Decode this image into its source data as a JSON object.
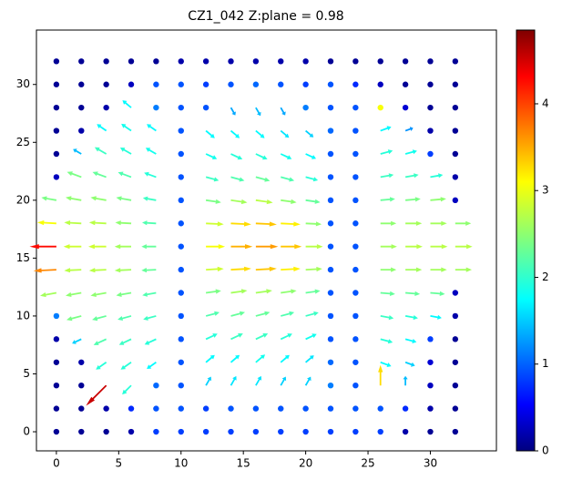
{
  "chart_data": {
    "type": "quiver",
    "title": "CZ1_042   Z:plane = 0.98",
    "colormap": "jet",
    "clim": [
      0,
      4.85
    ],
    "cticks": [
      0,
      1,
      2,
      3,
      4
    ],
    "xlim": [
      -1.6,
      35.3
    ],
    "ylim": [
      -1.65,
      34.7
    ],
    "xticks": [
      0,
      5,
      10,
      15,
      20,
      25,
      30
    ],
    "yticks": [
      0,
      5,
      10,
      15,
      20,
      25,
      30
    ],
    "x": [
      0,
      2,
      4,
      6,
      8,
      10,
      12,
      14,
      16,
      18,
      20,
      22,
      24,
      26,
      28,
      30,
      32
    ],
    "y": [
      0,
      2,
      4,
      6,
      8,
      10,
      12,
      14,
      16,
      18,
      20,
      22,
      24,
      26,
      28,
      30,
      32
    ],
    "magnitude": [
      [
        0.1,
        0.1,
        0.1,
        0.2,
        0.9,
        0.9,
        0.9,
        0.9,
        0.9,
        0.9,
        0.9,
        0.9,
        0.9,
        0.9,
        0.2,
        0.1,
        0.1
      ],
      [
        0.1,
        0.1,
        0.2,
        0.8,
        1.0,
        1.0,
        0.9,
        1.0,
        1.0,
        1.0,
        1.0,
        1.0,
        1.0,
        1.0,
        0.8,
        0.2,
        0.1
      ],
      [
        0.1,
        0.1,
        4.5,
        2.0,
        1.1,
        1.0,
        1.6,
        1.7,
        1.7,
        1.6,
        1.6,
        1.2,
        1.0,
        3.2,
        1.5,
        0.3,
        0.1
      ],
      [
        0.1,
        0.2,
        2.0,
        2.0,
        1.8,
        1.0,
        1.8,
        1.8,
        1.9,
        1.8,
        1.7,
        1.1,
        1.0,
        1.8,
        1.6,
        0.4,
        0.1
      ],
      [
        0.2,
        1.6,
        2.2,
        2.1,
        2.0,
        1.0,
        2.0,
        2.1,
        2.1,
        2.0,
        1.9,
        1.0,
        1.0,
        2.0,
        1.8,
        0.9,
        0.1
      ],
      [
        1.2,
        2.4,
        2.3,
        2.2,
        2.1,
        1.0,
        2.2,
        2.3,
        2.3,
        2.2,
        2.1,
        1.0,
        1.0,
        2.1,
        2.0,
        1.8,
        0.2
      ],
      [
        2.6,
        2.5,
        2.5,
        2.4,
        2.2,
        1.0,
        2.4,
        2.6,
        2.6,
        2.5,
        2.3,
        1.0,
        1.0,
        2.3,
        2.3,
        2.3,
        0.3
      ],
      [
        3.6,
        2.7,
        2.7,
        2.6,
        2.3,
        1.0,
        2.8,
        3.2,
        3.3,
        3.1,
        2.6,
        1.0,
        1.0,
        2.5,
        2.6,
        2.6,
        2.6
      ],
      [
        4.2,
        2.8,
        2.8,
        2.6,
        2.3,
        1.0,
        3.0,
        3.4,
        3.5,
        3.3,
        2.7,
        1.0,
        1.0,
        2.6,
        2.7,
        2.7,
        2.7
      ],
      [
        3.0,
        2.7,
        2.7,
        2.5,
        2.2,
        1.0,
        2.8,
        3.2,
        3.3,
        3.1,
        2.5,
        1.0,
        1.0,
        2.5,
        2.6,
        2.6,
        2.5
      ],
      [
        2.4,
        2.5,
        2.5,
        2.4,
        2.1,
        1.0,
        2.4,
        2.6,
        2.7,
        2.5,
        2.3,
        1.0,
        1.0,
        2.3,
        2.4,
        2.5,
        0.3
      ],
      [
        0.3,
        2.4,
        2.3,
        2.2,
        2.0,
        1.0,
        2.1,
        2.2,
        2.3,
        2.2,
        2.0,
        1.0,
        1.0,
        2.1,
        2.1,
        2.0,
        0.2
      ],
      [
        0.1,
        1.5,
        2.1,
        2.0,
        1.9,
        1.0,
        1.9,
        2.0,
        2.0,
        1.9,
        1.8,
        1.0,
        1.0,
        2.0,
        1.9,
        0.9,
        0.1
      ],
      [
        0.1,
        0.2,
        1.8,
        1.9,
        1.8,
        1.0,
        1.8,
        1.8,
        1.8,
        1.7,
        1.6,
        1.1,
        1.0,
        1.8,
        1.3,
        0.2,
        0.1
      ],
      [
        0.1,
        0.1,
        0.2,
        1.8,
        1.2,
        1.0,
        1.0,
        1.4,
        1.5,
        1.4,
        1.2,
        1.0,
        1.0,
        3.0,
        0.4,
        0.1,
        0.1
      ],
      [
        0.1,
        0.1,
        0.1,
        0.3,
        1.0,
        1.0,
        0.9,
        1.0,
        1.1,
        1.0,
        0.9,
        1.0,
        0.8,
        0.3,
        0.1,
        0.1,
        0.1
      ],
      [
        0.1,
        0.1,
        0.1,
        0.1,
        0.1,
        0.2,
        0.2,
        0.2,
        0.2,
        0.2,
        0.2,
        0.1,
        0.1,
        0.1,
        0.1,
        0.1,
        0.1
      ]
    ],
    "angle": [
      [
        null,
        null,
        null,
        null,
        null,
        null,
        null,
        null,
        null,
        null,
        null,
        null,
        null,
        null,
        null,
        null,
        null
      ],
      [
        null,
        null,
        null,
        null,
        null,
        null,
        null,
        null,
        null,
        null,
        null,
        null,
        null,
        null,
        null,
        null,
        null
      ],
      [
        null,
        null,
        225,
        225,
        null,
        null,
        60,
        60,
        60,
        60,
        60,
        null,
        null,
        90,
        90,
        null,
        null
      ],
      [
        null,
        null,
        215,
        215,
        215,
        null,
        40,
        40,
        40,
        40,
        40,
        null,
        null,
        -20,
        -20,
        null,
        null
      ],
      [
        null,
        205,
        205,
        205,
        205,
        null,
        25,
        25,
        25,
        25,
        25,
        null,
        null,
        -15,
        -15,
        null,
        null
      ],
      [
        null,
        195,
        195,
        195,
        195,
        null,
        15,
        15,
        15,
        15,
        15,
        null,
        null,
        -10,
        -10,
        -10,
        null
      ],
      [
        190,
        190,
        190,
        190,
        190,
        null,
        8,
        8,
        8,
        8,
        8,
        null,
        null,
        -5,
        -5,
        -5,
        null
      ],
      [
        183,
        183,
        183,
        183,
        183,
        null,
        3,
        3,
        3,
        3,
        3,
        null,
        null,
        0,
        0,
        0,
        0
      ],
      [
        180,
        180,
        180,
        180,
        180,
        null,
        0,
        0,
        0,
        0,
        0,
        null,
        null,
        0,
        0,
        0,
        0
      ],
      [
        177,
        177,
        177,
        177,
        177,
        null,
        -3,
        -3,
        -3,
        -3,
        -3,
        null,
        null,
        0,
        0,
        0,
        0
      ],
      [
        170,
        170,
        170,
        170,
        170,
        null,
        -8,
        -8,
        -8,
        -8,
        -8,
        null,
        null,
        5,
        5,
        5,
        null
      ],
      [
        null,
        160,
        160,
        160,
        160,
        null,
        -15,
        -15,
        -15,
        -15,
        -15,
        null,
        null,
        10,
        10,
        10,
        null
      ],
      [
        null,
        150,
        150,
        150,
        150,
        null,
        -25,
        -25,
        -25,
        -25,
        -25,
        null,
        null,
        15,
        15,
        null,
        null
      ],
      [
        null,
        null,
        145,
        145,
        145,
        null,
        -40,
        -40,
        -40,
        -40,
        -40,
        null,
        null,
        20,
        20,
        null,
        null
      ],
      [
        null,
        null,
        null,
        140,
        null,
        null,
        null,
        -60,
        -60,
        -60,
        null,
        null,
        null,
        null,
        null,
        null,
        null
      ],
      [
        null,
        null,
        null,
        null,
        null,
        null,
        null,
        null,
        null,
        null,
        null,
        null,
        null,
        null,
        null,
        null,
        null
      ],
      [
        null,
        null,
        null,
        null,
        null,
        null,
        null,
        null,
        null,
        null,
        null,
        null,
        null,
        null,
        null,
        null,
        null
      ]
    ]
  }
}
